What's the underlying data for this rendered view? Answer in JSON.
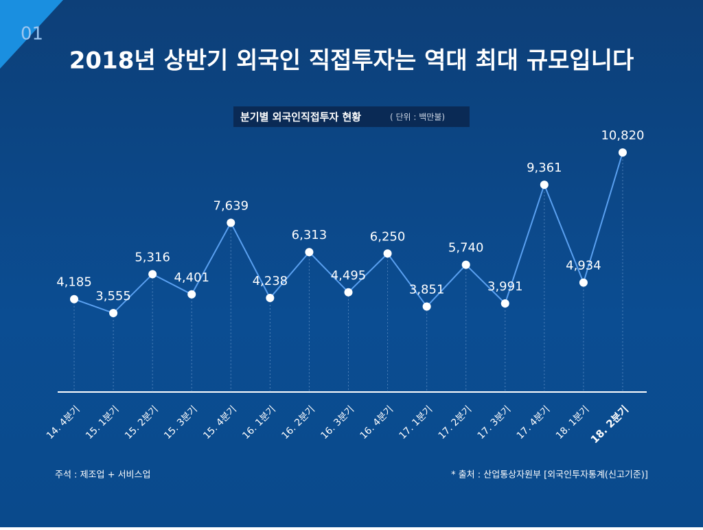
{
  "page_number": "01",
  "chart_data": {
    "type": "line",
    "title": "2018년 상반기 외국인 직접투자는 역대 최대 규모입니다",
    "subtitle": "분기별 외국인직접투자 현황",
    "unit": "( 단위 : 백만불)",
    "categories": [
      "14. 4분기",
      "15. 1분기",
      "15. 2분기",
      "15. 3분기",
      "15. 4분기",
      "16. 1분기",
      "16. 2분기",
      "16. 3분기",
      "16. 4분기",
      "17. 1분기",
      "17. 2분기",
      "17. 3분기",
      "17. 4분기",
      "18. 1분기",
      "18. 2분기"
    ],
    "values": [
      4185,
      3555,
      5316,
      4401,
      7639,
      4238,
      6313,
      4495,
      6250,
      3851,
      5740,
      3991,
      9361,
      4934,
      10820
    ],
    "value_labels": [
      "4,185",
      "3,555",
      "5,316",
      "4,401",
      "7,639",
      "4,238",
      "6,313",
      "4,495",
      "6,250",
      "3,851",
      "5,740",
      "3,991",
      "9,361",
      "4,934",
      "10,820"
    ],
    "color": "#5aa0f0",
    "note": "주석 : 제조업 + 서비스업",
    "source": "* 출처 : 산업통상자원부 [외국인투자통계(신고기준)]"
  }
}
